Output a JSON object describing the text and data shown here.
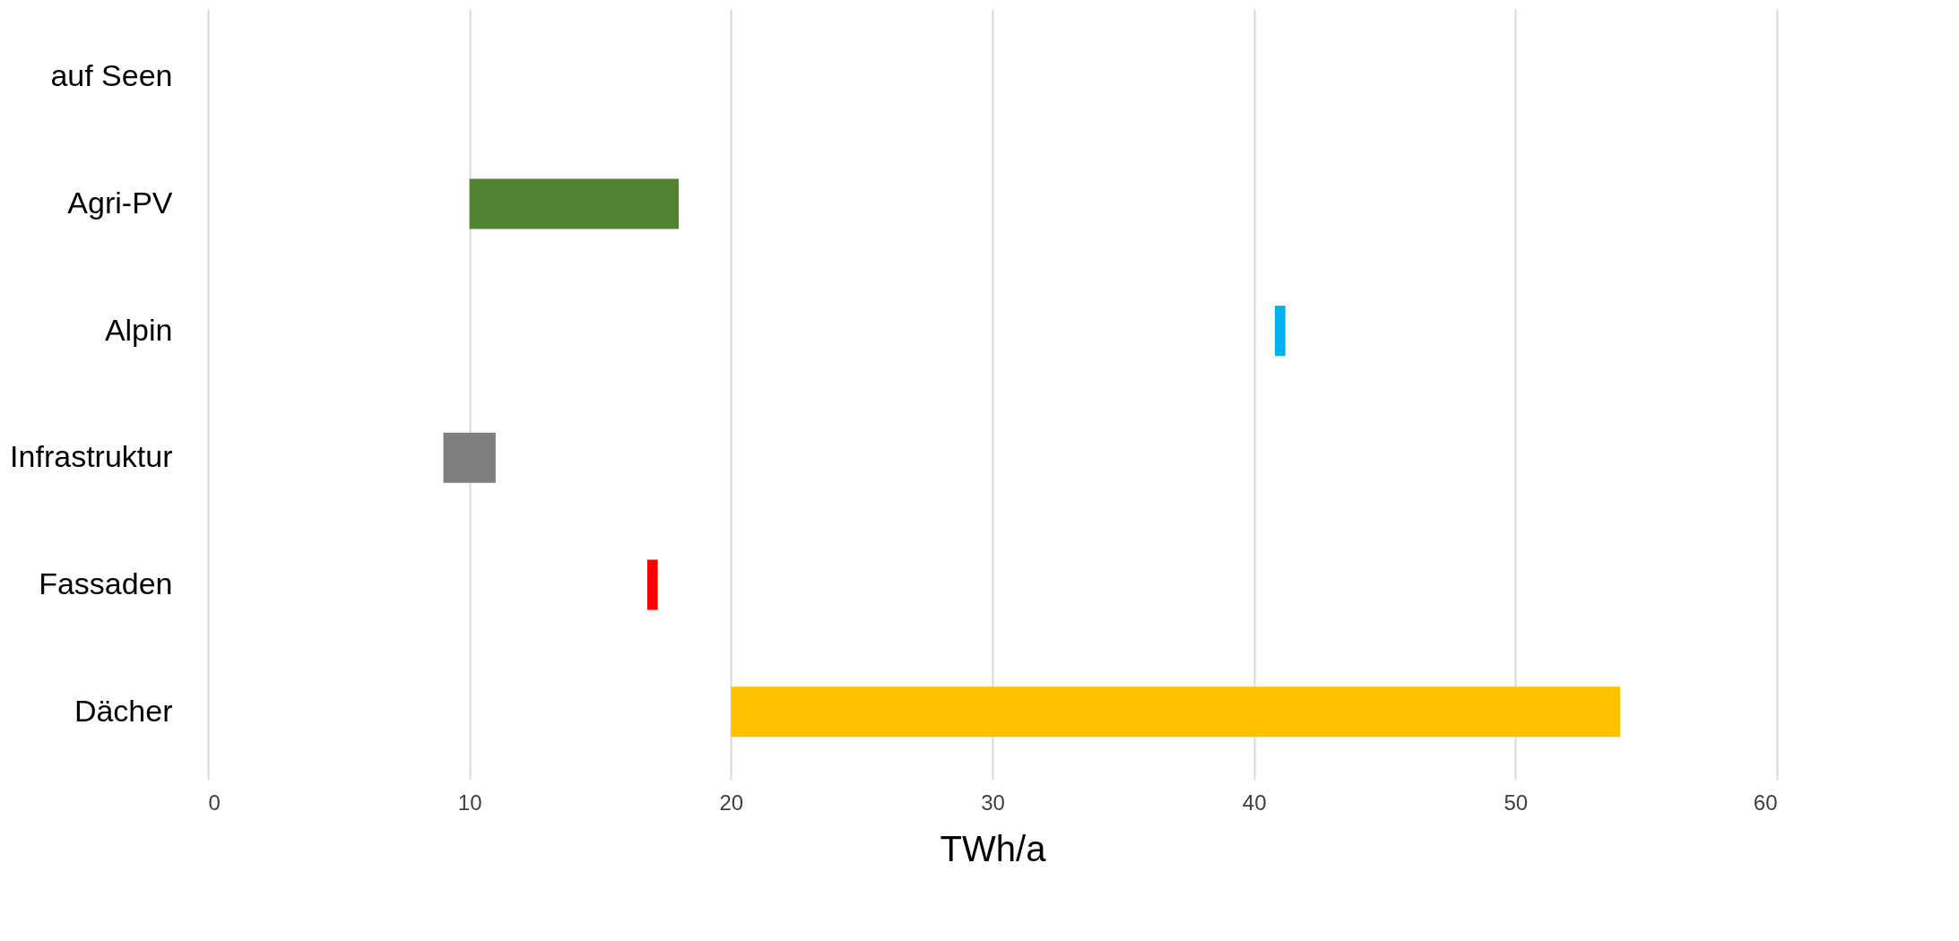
{
  "chart_data": {
    "type": "bar",
    "orientation": "horizontal",
    "xlabel": "TWh/a",
    "categories": [
      "auf Seen",
      "Agri-PV",
      "Alpin",
      "Infrastruktur",
      "Fassaden",
      "Dächer"
    ],
    "base": [
      null,
      10,
      40.8,
      9,
      16.8,
      20
    ],
    "values": [
      null,
      8,
      0.4,
      2,
      0.4,
      34
    ],
    "colors": [
      null,
      "#548235",
      "#00b0f0",
      "#7f7f7f",
      "#ff0000",
      "#ffc000"
    ],
    "xlim": [
      0,
      60
    ],
    "xticks": [
      0,
      10,
      20,
      30,
      40,
      50,
      60
    ],
    "grid": "x"
  }
}
